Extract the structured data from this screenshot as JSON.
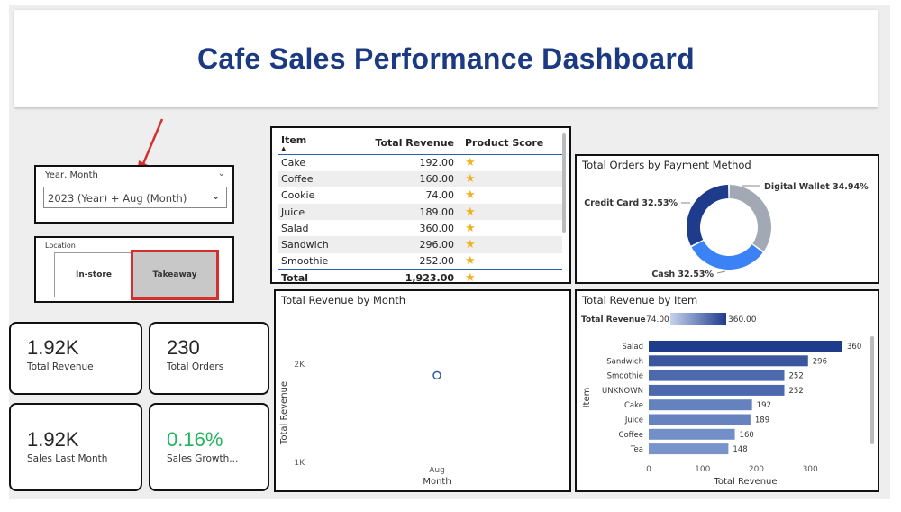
{
  "header": {
    "title": "Cafe Sales Performance Dashboard"
  },
  "date_slicer": {
    "title": "Year, Month",
    "value": "2023 (Year) + Aug (Month)"
  },
  "location_slicer": {
    "title": "Location",
    "options": [
      {
        "label": "In-store",
        "selected": false
      },
      {
        "label": "Takeaway",
        "selected": true
      }
    ]
  },
  "kpis": [
    {
      "value": "1.92K",
      "label": "Total Revenue",
      "color": "#252423"
    },
    {
      "value": "230",
      "label": "Total Orders",
      "color": "#252423"
    },
    {
      "value": "1.92K",
      "label": "Sales Last Month",
      "color": "#252423"
    },
    {
      "value": "0.16%",
      "label": "Sales Growth...",
      "color": "#1fb45a"
    }
  ],
  "table": {
    "columns": [
      "Item",
      "Total Revenue",
      "Product Score"
    ],
    "rows": [
      {
        "item": "Cake",
        "revenue": "192.00"
      },
      {
        "item": "Coffee",
        "revenue": "160.00"
      },
      {
        "item": "Cookie",
        "revenue": "74.00"
      },
      {
        "item": "Juice",
        "revenue": "189.00"
      },
      {
        "item": "Salad",
        "revenue": "360.00"
      },
      {
        "item": "Sandwich",
        "revenue": "296.00"
      },
      {
        "item": "Smoothie",
        "revenue": "252.00"
      }
    ],
    "total": {
      "label": "Total",
      "revenue": "1,923.00"
    },
    "score_icon": "star-icon"
  },
  "colors": {
    "title": "#1b3a82",
    "accent": "#2a4aa0",
    "highlight_border": "#d32f2f",
    "star": "#f2b01e",
    "growth": "#1fb45a"
  },
  "chart_data": [
    {
      "type": "pie",
      "title": "Total Orders by Payment Method",
      "variant": "donut",
      "slices": [
        {
          "label": "Digital Wallet",
          "value": 34.94,
          "display": "Digital Wallet 34.94%",
          "color": "#a2a8b4"
        },
        {
          "label": "Cash",
          "value": 32.53,
          "display": "Cash 32.53%",
          "color": "#3b82f6"
        },
        {
          "label": "Credit Card",
          "value": 32.53,
          "display": "Credit Card 32.53%",
          "color": "#1e3b8c"
        }
      ]
    },
    {
      "type": "scatter",
      "title": "Total Revenue by Month",
      "xlabel": "Month",
      "ylabel": "Total Revenue",
      "categories": [
        "Aug"
      ],
      "values": [
        1923
      ],
      "yticks": [
        "2K",
        "1K"
      ],
      "ylim": [
        1000,
        2000
      ]
    },
    {
      "type": "bar",
      "orientation": "horizontal",
      "title": "Total Revenue by Item",
      "xlabel": "Total Revenue",
      "ylabel": "Item",
      "legend": {
        "title": "Total Revenue",
        "min_label": "74.00",
        "max_label": "360.00"
      },
      "categories": [
        "Salad",
        "Sandwich",
        "Smoothie",
        "UNKNOWN",
        "Cake",
        "Juice",
        "Coffee",
        "Tea"
      ],
      "values": [
        360,
        296,
        252,
        252,
        192,
        189,
        160,
        148
      ],
      "xticks": [
        "0",
        "100",
        "200",
        "300"
      ],
      "xlim": [
        0,
        360
      ]
    }
  ]
}
